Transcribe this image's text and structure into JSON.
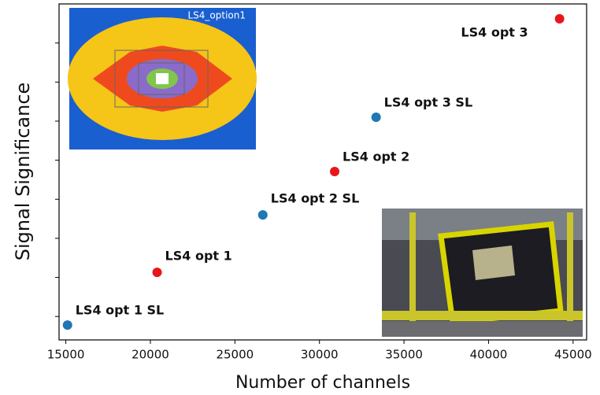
{
  "chart_data": {
    "type": "scatter",
    "x_label": "Number of channels",
    "y_label": "Signal Significance",
    "inset_label": "LS4_option1",
    "xlim": [
      14600,
      45800
    ],
    "xticks": [
      15000,
      20000,
      25000,
      30000,
      35000,
      40000,
      45000
    ],
    "ylim": [
      0.4,
      9.0
    ],
    "yticks": [
      1,
      2,
      3,
      4,
      5,
      6,
      7,
      8
    ],
    "ytick_labels": false,
    "points": [
      {
        "label": "LS4 opt 1 SL",
        "x": 15100,
        "y": 0.78,
        "color": "#1f77b4"
      },
      {
        "label": "LS4 opt 1",
        "x": 20400,
        "y": 2.13,
        "color": "#e8161b"
      },
      {
        "label": "LS4 opt 2 SL",
        "x": 26650,
        "y": 3.6,
        "color": "#1f77b4"
      },
      {
        "label": "LS4 opt 2",
        "x": 30900,
        "y": 4.71,
        "color": "#e8161b"
      },
      {
        "label": "LS4 opt 3 SL",
        "x": 33350,
        "y": 6.1,
        "color": "#1f77b4"
      },
      {
        "label": "LS4 opt 3",
        "x": 44200,
        "y": 8.62,
        "color": "#e8161b"
      }
    ]
  }
}
